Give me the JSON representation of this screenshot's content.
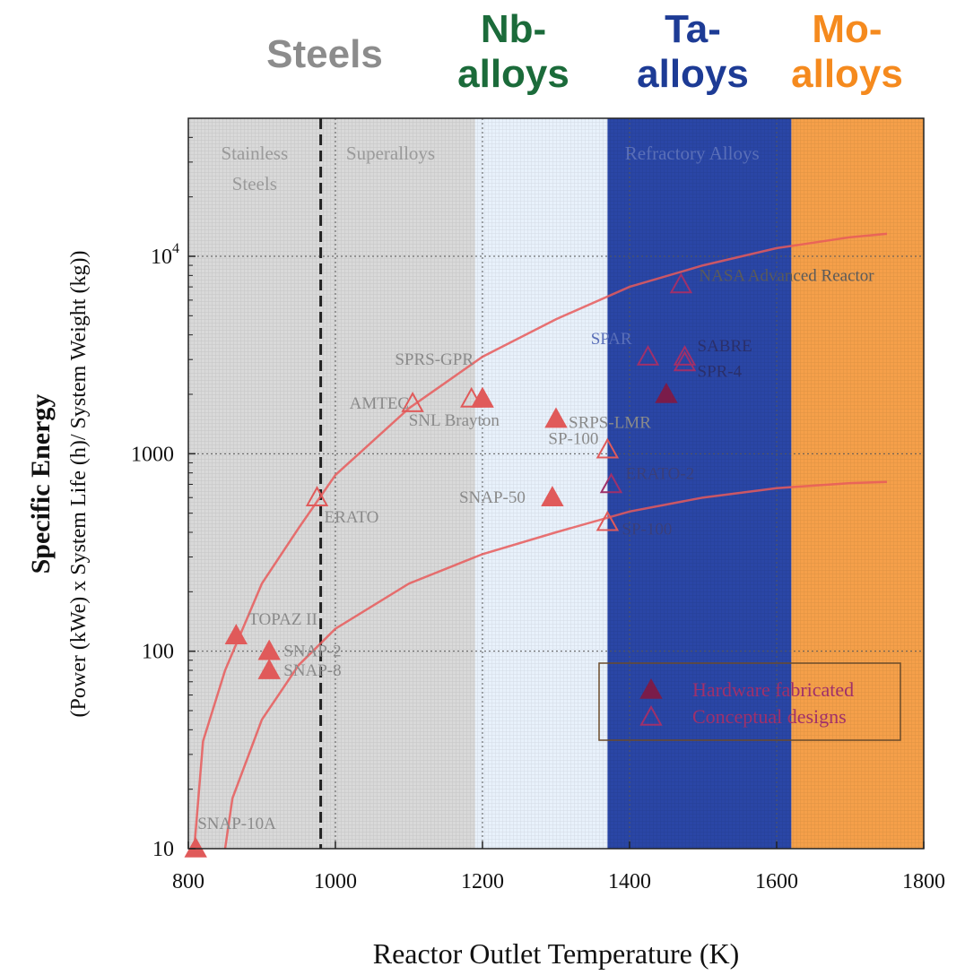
{
  "chart_data": {
    "type": "scatter",
    "xscale": "linear",
    "yscale": "log",
    "xlim": [
      800,
      1800
    ],
    "ylim": [
      10,
      50000
    ],
    "xticks": [
      "800",
      "1000",
      "1200",
      "1400",
      "1600",
      "1800"
    ],
    "yticks": [
      "10",
      "100",
      "1000",
      "10^4"
    ],
    "ylabel_main": "Specific Energy",
    "ylabel_sub": "(Power (kWe) x System Life (h)/ System Weight (kg))",
    "xlabel": "Reactor Outlet Temperature (K)",
    "grid": true,
    "header_labels": [
      {
        "lines": [
          "Steels"
        ],
        "color": "#8c8c8c"
      },
      {
        "lines": [
          "Nb-",
          "alloys"
        ],
        "color": "#1b6b3a"
      },
      {
        "lines": [
          "Ta-",
          "alloys"
        ],
        "color": "#1d3b95"
      },
      {
        "lines": [
          "Mo-",
          "alloys"
        ],
        "color": "#f58a1e"
      }
    ],
    "regions": [
      {
        "x0": 800,
        "x1": 1190,
        "color": "#d9d9d9",
        "label_lines": [],
        "label_x": 0
      },
      {
        "x0": 1190,
        "x1": 1370,
        "color": "#e8f1fb",
        "label_lines": [],
        "label_x": 0
      },
      {
        "x0": 1370,
        "x1": 1620,
        "color": "#2a46a6",
        "label_lines": [],
        "label_x": 0
      },
      {
        "x0": 1620,
        "x1": 1800,
        "color": "#f5a04a",
        "label_lines": [],
        "label_x": 0
      }
    ],
    "region_labels": [
      {
        "lines": [
          "Stainless",
          "Steels"
        ],
        "x": 890
      },
      {
        "lines": [
          "Superalloys"
        ],
        "x": 1075
      },
      {
        "lines": [
          "Refractory Alloys"
        ],
        "x": 1485
      }
    ],
    "series": [
      {
        "name": "Hardware fabricated",
        "marker": "filled-triangle",
        "points": [
          {
            "label": "SNAP-10A",
            "x": 810,
            "y": 10
          },
          {
            "label": "TOPAZ II",
            "x": 865,
            "y": 120
          },
          {
            "label": "SNAP-2",
            "x": 910,
            "y": 100
          },
          {
            "label": "SNAP-8",
            "x": 910,
            "y": 80
          },
          {
            "label": "SNAP-50",
            "x": 1295,
            "y": 600
          },
          {
            "label": "SRPS-LMR",
            "x": 1300,
            "y": 1500
          },
          {
            "label": "",
            "x": 1200,
            "y": 1900
          },
          {
            "label": "",
            "x": 1450,
            "y": 2000
          }
        ]
      },
      {
        "name": "Conceptual designs",
        "marker": "open-triangle",
        "points": [
          {
            "label": "ERATO",
            "x": 975,
            "y": 600
          },
          {
            "label": "AMTEC",
            "x": 1105,
            "y": 1800
          },
          {
            "label": "SNL Brayton",
            "x": 1185,
            "y": 1900
          },
          {
            "label": "SPRS-GPR",
            "x": 1200,
            "y": 1900
          },
          {
            "label": "SP-100",
            "x": 1370,
            "y": 1050
          },
          {
            "label": "ERATO-2",
            "x": 1375,
            "y": 700
          },
          {
            "label": "SP-100",
            "x": 1370,
            "y": 450
          },
          {
            "label": "SPAR",
            "x": 1425,
            "y": 3100
          },
          {
            "label": "SABRE",
            "x": 1475,
            "y": 3100
          },
          {
            "label": "SPR-4",
            "x": 1475,
            "y": 2900
          },
          {
            "label": "NASA Advanced Reactor",
            "x": 1470,
            "y": 7200
          }
        ]
      }
    ],
    "curves": [
      {
        "name": "",
        "x": [
          808,
          820,
          850,
          900,
          950,
          1000,
          1100,
          1200,
          1300,
          1400,
          1500,
          1600,
          1700,
          1750
        ],
        "y": [
          10,
          35,
          80,
          220,
          420,
          780,
          1700,
          3100,
          4800,
          7000,
          9000,
          11000,
          12500,
          13000
        ]
      },
      {
        "name": "",
        "x": [
          850,
          860,
          900,
          950,
          1000,
          1100,
          1200,
          1300,
          1400,
          1500,
          1600,
          1700,
          1750
        ],
        "y": [
          10,
          18,
          45,
          85,
          130,
          220,
          310,
          400,
          510,
          600,
          670,
          710,
          720
        ]
      }
    ],
    "legend": {
      "position": "lower-right",
      "entries": [
        "Hardware fabricated",
        "Conceptual designs"
      ]
    },
    "annotations": [
      "SNAP-10A",
      "TOPAZ II",
      "SNAP-2",
      "SNAP-8",
      "ERATO",
      "AMTEC",
      "SNL Brayton",
      "SPRS-GPR",
      "SNAP-50",
      "SRPS-LMR",
      "SP-100",
      "ERATO-2",
      "SP-100",
      "SPAR",
      "SABRE",
      "SPR-4",
      "NASA Advanced Reactor"
    ],
    "colors": {
      "hardware": "#7a1c4a",
      "conceptual": "#a0306a",
      "curve": "#e85a5a",
      "curve_dark": "#6a1d5e"
    }
  }
}
